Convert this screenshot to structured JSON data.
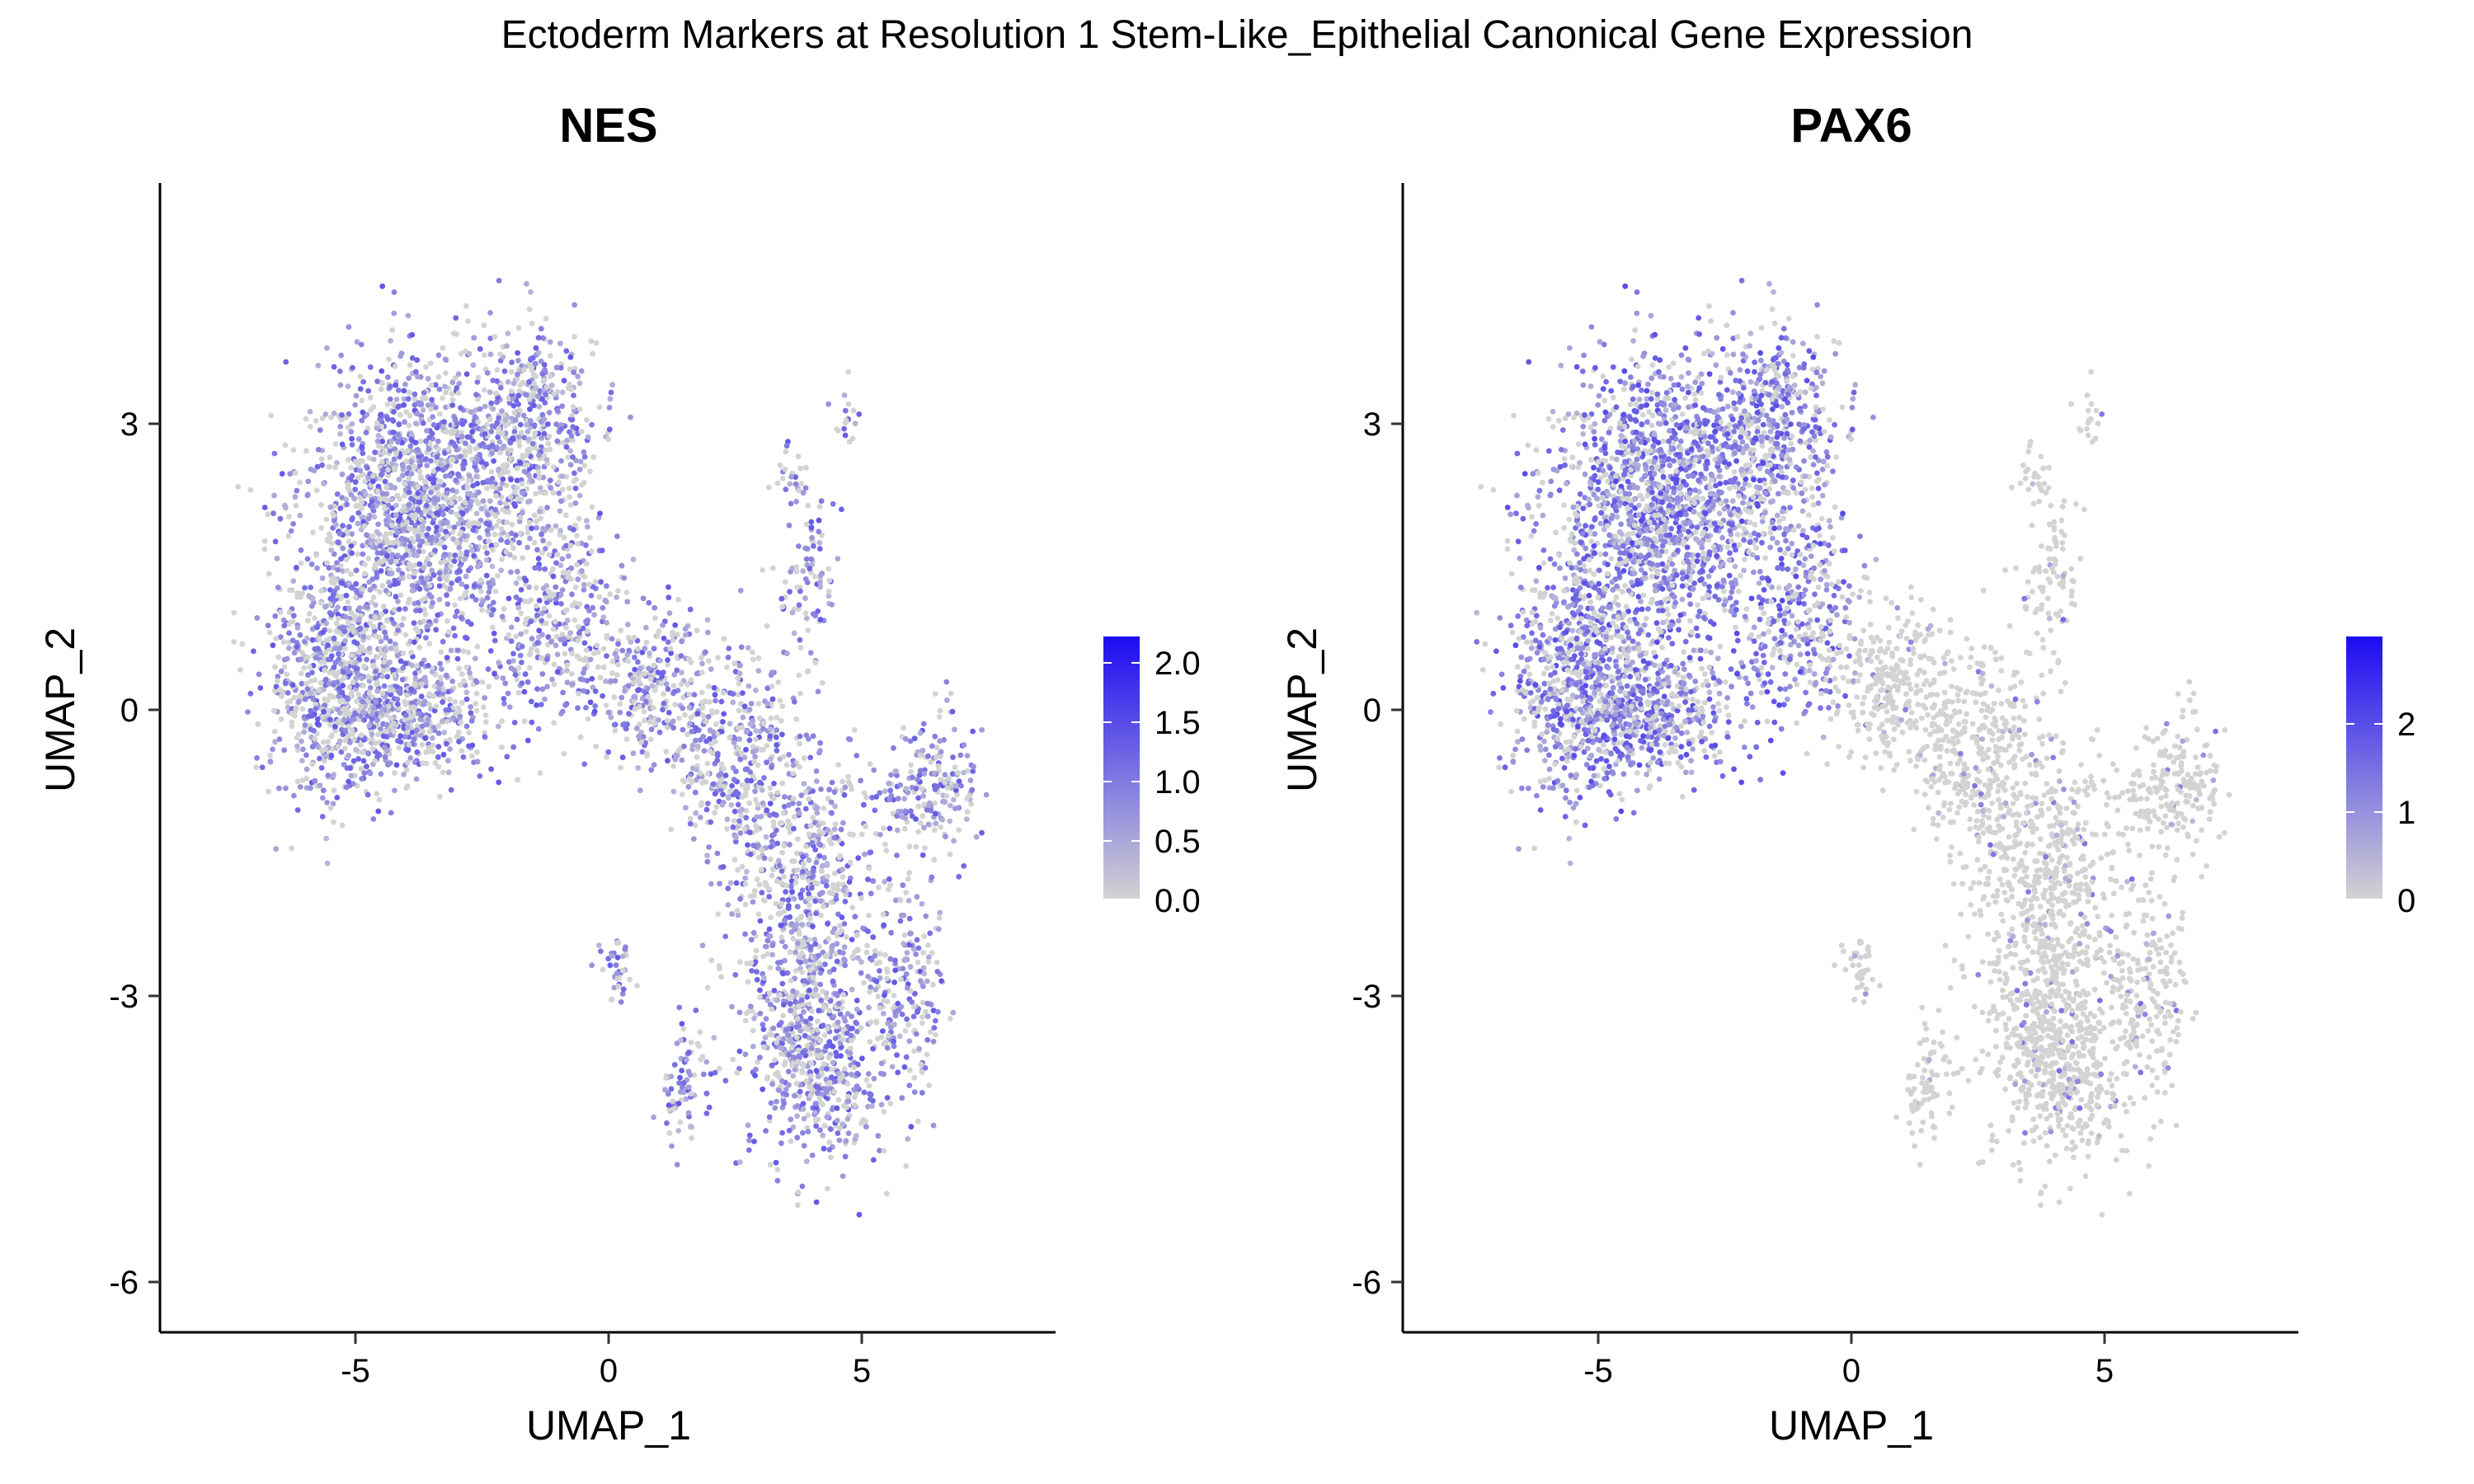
{
  "figure": {
    "suptitle": "Ectoderm Markers at Resolution 1 Stem-Like_Epithelial Canonical Gene Expression",
    "low_color": "#d3d3d3",
    "high_color": "#1c0bf2"
  },
  "chart_data": [
    {
      "type": "scatter",
      "title": "NES",
      "xlabel": "UMAP_1",
      "ylabel": "UMAP_2",
      "xlim": [
        -8.7,
        8.9
      ],
      "ylim": [
        -6.5,
        5.5
      ],
      "xticks": [
        -5,
        0,
        5
      ],
      "xtick_labels": [
        "-5",
        "0",
        "5"
      ],
      "yticks": [
        -6,
        -3,
        0,
        3
      ],
      "ytick_labels": [
        "-6",
        "-3",
        "0",
        "3"
      ],
      "color_scale": {
        "min": 0.0,
        "max": 2.25,
        "ticks": [
          0.0,
          0.5,
          1.0,
          1.5,
          2.0
        ],
        "tick_labels": [
          "0.0",
          "0.5",
          "1.0",
          "1.5",
          "2.0"
        ]
      },
      "expression_pattern": "moderate expression broadly across both the upper-left and lower-right clusters",
      "points_described": "approximately 4000-6000 cells forming two main lobes: upper-left block (UMAP_1 -7 to 0.5, UMAP_2 -1 to 4.4) and lower-right tail (UMAP_1 0 to 8, UMAP_2 -5.2 to 3.2)"
    },
    {
      "type": "scatter",
      "title": "PAX6",
      "xlabel": "UMAP_1",
      "ylabel": "UMAP_2",
      "xlim": [
        -8.7,
        8.9
      ],
      "ylim": [
        -6.5,
        5.5
      ],
      "xticks": [
        -5,
        0,
        5
      ],
      "xtick_labels": [
        "-5",
        "0",
        "5"
      ],
      "yticks": [
        -6,
        -3,
        0,
        3
      ],
      "ytick_labels": [
        "-6",
        "-3",
        "0",
        "3"
      ],
      "color_scale": {
        "min": 0,
        "max": 2.9,
        "ticks": [
          0,
          1,
          2
        ],
        "tick_labels": [
          "0",
          "1",
          "2"
        ]
      },
      "expression_pattern": "expression concentrated in the upper-left cluster; lower-right cluster mostly unexpressed",
      "points_described": "same embedding as NES panel"
    }
  ]
}
